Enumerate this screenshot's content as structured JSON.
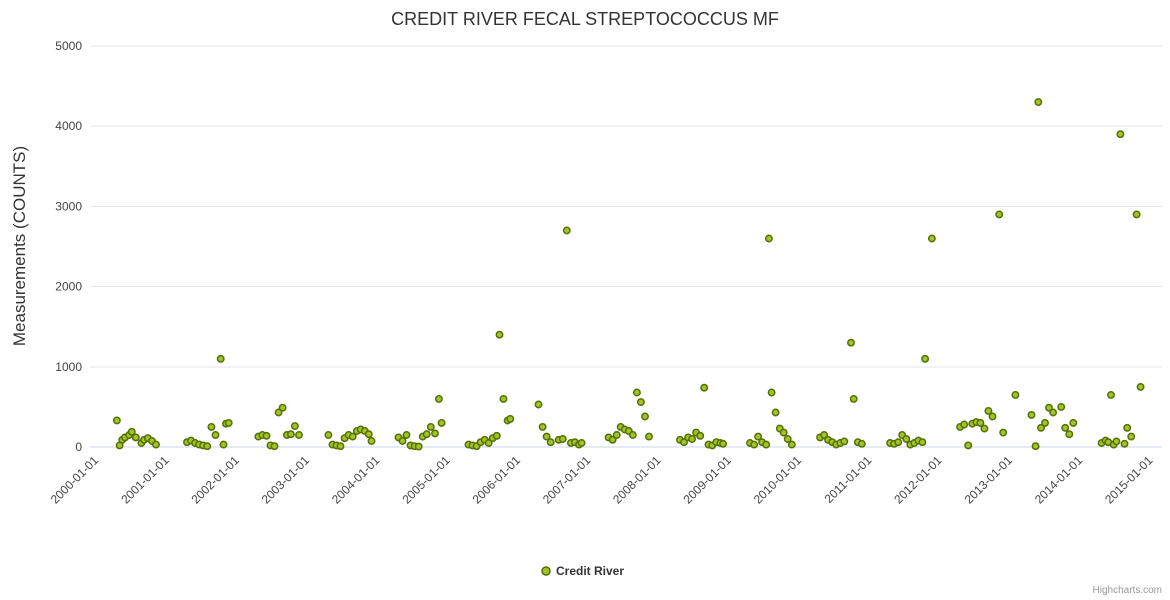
{
  "credits": "Highcharts.com",
  "chart_data": {
    "type": "scatter",
    "title": "CREDIT RIVER FECAL STREPTOCOCCUS MF",
    "xlabel": "",
    "ylabel": "Measurements (COUNTS)",
    "series_name": "Credit River",
    "legend_position": "bottom",
    "grid": true,
    "ylim": [
      0,
      5000
    ],
    "y_ticks": [
      0,
      1000,
      2000,
      3000,
      4000,
      5000
    ],
    "x_range": [
      "1999-11-15",
      "2015-02-15"
    ],
    "x_ticks": [
      "2000-01-01",
      "2001-01-01",
      "2002-01-01",
      "2003-01-01",
      "2004-01-01",
      "2005-01-01",
      "2006-01-01",
      "2007-01-01",
      "2008-01-01",
      "2009-01-01",
      "2010-01-01",
      "2011-01-01",
      "2012-01-01",
      "2013-01-01",
      "2014-01-01",
      "2015-01-01"
    ],
    "marker": {
      "fill": "#a2c42a",
      "stroke": "#557000"
    },
    "points": [
      [
        "2000-04-03",
        330
      ],
      [
        "2000-04-17",
        20
      ],
      [
        "2000-05-01",
        90
      ],
      [
        "2000-05-15",
        120
      ],
      [
        "2000-06-05",
        150
      ],
      [
        "2000-06-19",
        190
      ],
      [
        "2000-07-10",
        120
      ],
      [
        "2000-08-08",
        50
      ],
      [
        "2000-08-22",
        90
      ],
      [
        "2000-09-11",
        110
      ],
      [
        "2000-10-02",
        75
      ],
      [
        "2000-10-23",
        30
      ],
      [
        "2001-04-02",
        60
      ],
      [
        "2001-04-23",
        80
      ],
      [
        "2001-05-14",
        50
      ],
      [
        "2001-06-04",
        30
      ],
      [
        "2001-06-25",
        20
      ],
      [
        "2001-07-16",
        10
      ],
      [
        "2001-08-07",
        250
      ],
      [
        "2001-08-28",
        150
      ],
      [
        "2001-09-24",
        1100
      ],
      [
        "2001-10-09",
        30
      ],
      [
        "2001-10-22",
        290
      ],
      [
        "2001-11-05",
        300
      ],
      [
        "2002-04-08",
        130
      ],
      [
        "2002-04-29",
        150
      ],
      [
        "2002-05-20",
        140
      ],
      [
        "2002-06-10",
        20
      ],
      [
        "2002-07-01",
        10
      ],
      [
        "2002-07-22",
        430
      ],
      [
        "2002-08-12",
        490
      ],
      [
        "2002-09-03",
        150
      ],
      [
        "2002-09-24",
        160
      ],
      [
        "2002-10-15",
        260
      ],
      [
        "2002-11-05",
        150
      ],
      [
        "2003-04-07",
        150
      ],
      [
        "2003-04-28",
        30
      ],
      [
        "2003-05-19",
        20
      ],
      [
        "2003-06-09",
        10
      ],
      [
        "2003-06-30",
        110
      ],
      [
        "2003-07-21",
        150
      ],
      [
        "2003-08-11",
        130
      ],
      [
        "2003-09-02",
        200
      ],
      [
        "2003-09-22",
        220
      ],
      [
        "2003-10-13",
        200
      ],
      [
        "2003-11-03",
        160
      ],
      [
        "2003-11-17",
        75
      ],
      [
        "2004-04-05",
        120
      ],
      [
        "2004-04-26",
        75
      ],
      [
        "2004-05-17",
        150
      ],
      [
        "2004-06-07",
        20
      ],
      [
        "2004-06-28",
        10
      ],
      [
        "2004-07-19",
        5
      ],
      [
        "2004-08-09",
        130
      ],
      [
        "2004-08-30",
        160
      ],
      [
        "2004-09-20",
        250
      ],
      [
        "2004-10-12",
        170
      ],
      [
        "2004-11-01",
        600
      ],
      [
        "2004-11-15",
        300
      ],
      [
        "2005-04-04",
        30
      ],
      [
        "2005-04-25",
        20
      ],
      [
        "2005-05-16",
        10
      ],
      [
        "2005-06-06",
        60
      ],
      [
        "2005-06-27",
        90
      ],
      [
        "2005-07-18",
        50
      ],
      [
        "2005-08-08",
        110
      ],
      [
        "2005-08-29",
        140
      ],
      [
        "2005-09-12",
        1400
      ],
      [
        "2005-10-03",
        600
      ],
      [
        "2005-10-24",
        330
      ],
      [
        "2005-11-07",
        350
      ],
      [
        "2006-04-03",
        530
      ],
      [
        "2006-04-24",
        250
      ],
      [
        "2006-05-15",
        130
      ],
      [
        "2006-06-05",
        60
      ],
      [
        "2006-07-17",
        90
      ],
      [
        "2006-08-07",
        100
      ],
      [
        "2006-08-28",
        2700
      ],
      [
        "2006-09-18",
        50
      ],
      [
        "2006-10-09",
        60
      ],
      [
        "2006-10-30",
        30
      ],
      [
        "2006-11-13",
        50
      ],
      [
        "2007-04-02",
        120
      ],
      [
        "2007-04-23",
        90
      ],
      [
        "2007-05-14",
        150
      ],
      [
        "2007-06-04",
        250
      ],
      [
        "2007-06-25",
        220
      ],
      [
        "2007-07-16",
        200
      ],
      [
        "2007-08-06",
        150
      ],
      [
        "2007-08-27",
        680
      ],
      [
        "2007-09-17",
        560
      ],
      [
        "2007-10-08",
        380
      ],
      [
        "2007-10-29",
        130
      ],
      [
        "2008-04-07",
        90
      ],
      [
        "2008-04-28",
        60
      ],
      [
        "2008-05-19",
        120
      ],
      [
        "2008-06-09",
        100
      ],
      [
        "2008-06-30",
        180
      ],
      [
        "2008-07-21",
        140
      ],
      [
        "2008-08-11",
        740
      ],
      [
        "2008-09-02",
        30
      ],
      [
        "2008-09-22",
        20
      ],
      [
        "2008-10-13",
        60
      ],
      [
        "2008-11-03",
        50
      ],
      [
        "2008-11-17",
        40
      ],
      [
        "2009-04-06",
        50
      ],
      [
        "2009-04-27",
        30
      ],
      [
        "2009-05-18",
        130
      ],
      [
        "2009-06-08",
        60
      ],
      [
        "2009-06-29",
        30
      ],
      [
        "2009-07-13",
        2600
      ],
      [
        "2009-07-27",
        680
      ],
      [
        "2009-08-17",
        430
      ],
      [
        "2009-09-08",
        230
      ],
      [
        "2009-09-28",
        180
      ],
      [
        "2009-10-19",
        100
      ],
      [
        "2009-11-09",
        30
      ],
      [
        "2010-04-05",
        120
      ],
      [
        "2010-04-26",
        150
      ],
      [
        "2010-05-17",
        90
      ],
      [
        "2010-06-07",
        60
      ],
      [
        "2010-06-28",
        30
      ],
      [
        "2010-07-19",
        50
      ],
      [
        "2010-08-09",
        70
      ],
      [
        "2010-09-13",
        1300
      ],
      [
        "2010-09-27",
        600
      ],
      [
        "2010-10-18",
        60
      ],
      [
        "2010-11-08",
        40
      ],
      [
        "2011-04-04",
        50
      ],
      [
        "2011-04-25",
        40
      ],
      [
        "2011-05-16",
        60
      ],
      [
        "2011-06-06",
        150
      ],
      [
        "2011-06-27",
        100
      ],
      [
        "2011-07-18",
        30
      ],
      [
        "2011-08-08",
        50
      ],
      [
        "2011-08-29",
        80
      ],
      [
        "2011-09-19",
        60
      ],
      [
        "2011-10-03",
        1100
      ],
      [
        "2011-11-07",
        2600
      ],
      [
        "2012-04-02",
        250
      ],
      [
        "2012-04-23",
        280
      ],
      [
        "2012-05-14",
        20
      ],
      [
        "2012-06-04",
        290
      ],
      [
        "2012-06-25",
        310
      ],
      [
        "2012-07-16",
        300
      ],
      [
        "2012-08-06",
        230
      ],
      [
        "2012-08-27",
        450
      ],
      [
        "2012-09-17",
        380
      ],
      [
        "2012-10-22",
        2900
      ],
      [
        "2012-11-12",
        180
      ],
      [
        "2013-01-14",
        650
      ],
      [
        "2013-04-08",
        400
      ],
      [
        "2013-04-29",
        10
      ],
      [
        "2013-05-13",
        4300
      ],
      [
        "2013-05-27",
        240
      ],
      [
        "2013-06-17",
        300
      ],
      [
        "2013-07-08",
        490
      ],
      [
        "2013-07-29",
        430
      ],
      [
        "2013-09-09",
        500
      ],
      [
        "2013-09-30",
        240
      ],
      [
        "2013-10-21",
        160
      ],
      [
        "2013-11-11",
        300
      ],
      [
        "2014-04-07",
        50
      ],
      [
        "2014-04-28",
        80
      ],
      [
        "2014-05-12",
        60
      ],
      [
        "2014-05-26",
        650
      ],
      [
        "2014-06-09",
        30
      ],
      [
        "2014-06-23",
        70
      ],
      [
        "2014-07-14",
        3900
      ],
      [
        "2014-08-04",
        40
      ],
      [
        "2014-08-18",
        240
      ],
      [
        "2014-09-08",
        130
      ],
      [
        "2014-10-06",
        2900
      ],
      [
        "2014-10-27",
        750
      ]
    ]
  }
}
